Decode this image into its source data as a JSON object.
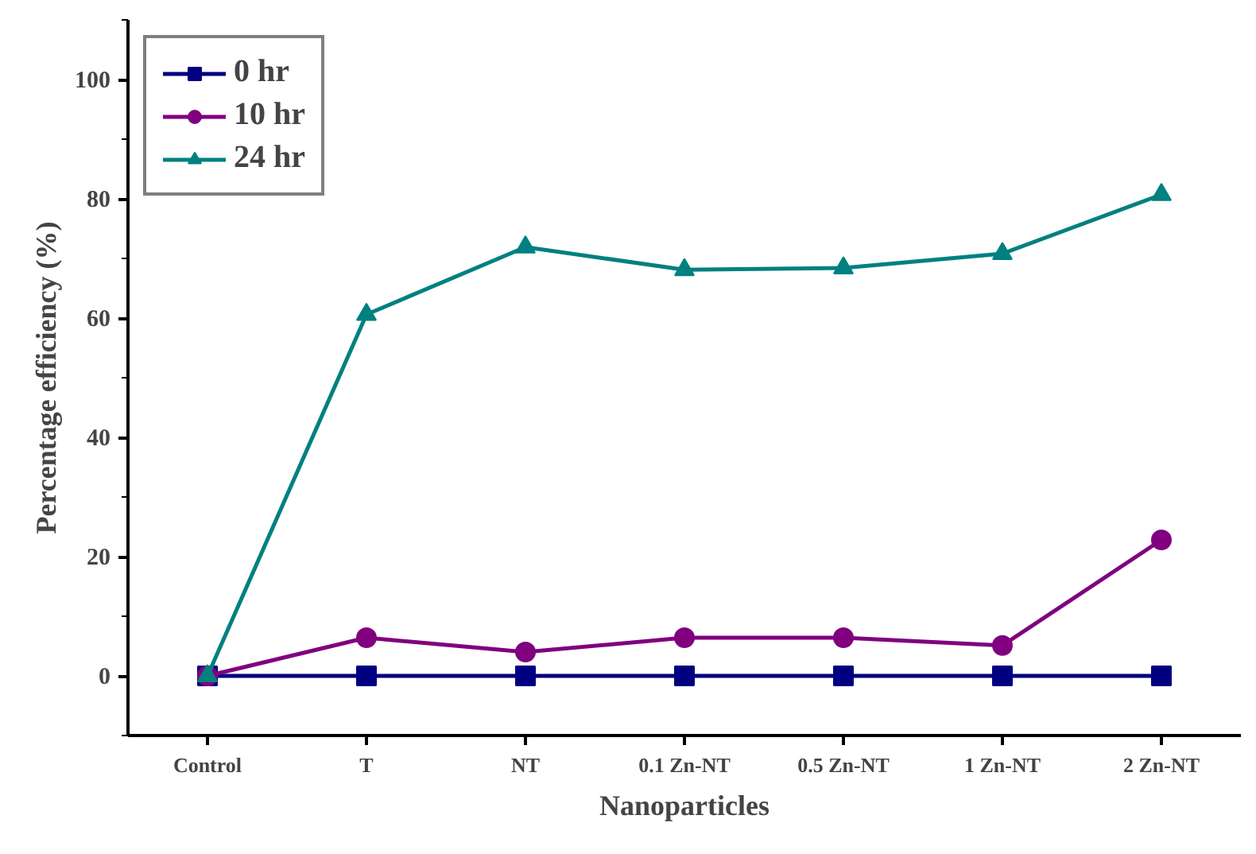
{
  "chart_data": {
    "type": "line",
    "xlabel": "Nanoparticles",
    "ylabel": "Percentage efficiency (%)",
    "categories": [
      "Control",
      "T",
      "NT",
      "0.1 Zn-NT",
      "0.5 Zn-NT",
      "1 Zn-NT",
      "2 Zn-NT"
    ],
    "series": [
      {
        "name": "0 hr",
        "color": "#000080",
        "marker": "square",
        "values": [
          0,
          0,
          0,
          0,
          0,
          0,
          0
        ]
      },
      {
        "name": "10 hr",
        "color": "#800080",
        "marker": "circle",
        "values": [
          0,
          6.4,
          4.0,
          6.4,
          6.4,
          5.1,
          22.8
        ]
      },
      {
        "name": "24 hr",
        "color": "#008080",
        "marker": "triangle",
        "values": [
          0,
          60.6,
          71.9,
          68.1,
          68.4,
          70.8,
          80.7
        ]
      }
    ],
    "ylim": [
      -10,
      110
    ],
    "yticks": [
      0,
      20,
      40,
      60,
      80,
      100
    ],
    "grid": false,
    "legend": "top left",
    "line_style": "solid"
  }
}
